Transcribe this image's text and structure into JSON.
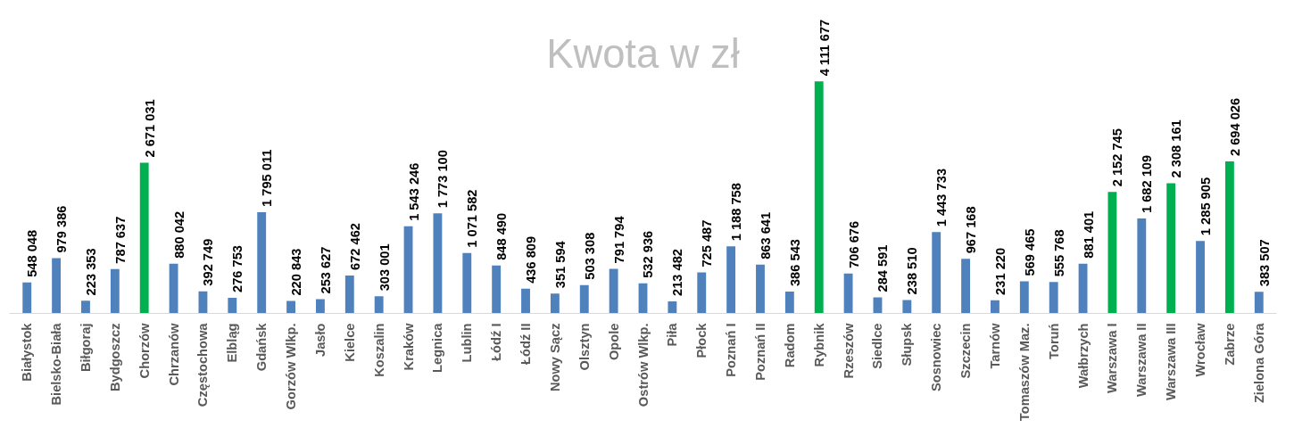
{
  "chart_data": {
    "type": "bar",
    "title": "Kwota w zł",
    "categories": [
      "Białystok",
      "Bielsko-Biała",
      "Biłgoraj",
      "Bydgoszcz",
      "Chorzów",
      "Chrzanów",
      "Częstochowa",
      "Elbląg",
      "Gdańsk",
      "Gorzów Wlkp.",
      "Jasło",
      "Kielce",
      "Koszalin",
      "Kraków",
      "Legnica",
      "Lublin",
      "Łódź I",
      "Łódź II",
      "Nowy Sącz",
      "Olsztyn",
      "Opole",
      "Ostrów Wlkp.",
      "Piła",
      "Płock",
      "Poznań I",
      "Poznań II",
      "Radom",
      "Rybnik",
      "Rzeszów",
      "Siedlce",
      "Słupsk",
      "Sosnowiec",
      "Szczecin",
      "Tarnów",
      "Tomaszów Maz.",
      "Toruń",
      "Wałbrzych",
      "Warszawa I",
      "Warszawa II",
      "Warszawa III",
      "Wrocław",
      "Zabrze",
      "Zielona Góra"
    ],
    "values": [
      548048,
      979386,
      223353,
      787637,
      2671031,
      880042,
      392749,
      276753,
      1795011,
      220843,
      253627,
      672462,
      303001,
      1543246,
      1773100,
      1071582,
      848490,
      436809,
      351594,
      503308,
      791794,
      532936,
      213482,
      725487,
      1188758,
      863641,
      386543,
      4111677,
      706676,
      284591,
      238510,
      1443733,
      967168,
      231220,
      569465,
      555768,
      881401,
      2152745,
      1682109,
      2308161,
      1285905,
      2694026,
      383507
    ],
    "value_labels": [
      "548 048",
      "979 386",
      "223 353",
      "787 637",
      "2 671 031",
      "880 042",
      "392 749",
      "276 753",
      "1 795 011",
      "220 843",
      "253 627",
      "672 462",
      "303 001",
      "1 543 246",
      "1 773 100",
      "1 071 582",
      "848 490",
      "436 809",
      "351 594",
      "503 308",
      "791 794",
      "532 936",
      "213 482",
      "725 487",
      "1 188 758",
      "863 641",
      "386 543",
      "4 111 677",
      "706 676",
      "284 591",
      "238 510",
      "1 443 733",
      "967 168",
      "231 220",
      "569 465",
      "555 768",
      "881 401",
      "2 152 745",
      "1 682 109",
      "2 308 161",
      "1 285 905",
      "2 694 026",
      "383 507"
    ],
    "colors": [
      "#4f81bd",
      "#4f81bd",
      "#4f81bd",
      "#4f81bd",
      "#00b050",
      "#4f81bd",
      "#4f81bd",
      "#4f81bd",
      "#4f81bd",
      "#4f81bd",
      "#4f81bd",
      "#4f81bd",
      "#4f81bd",
      "#4f81bd",
      "#4f81bd",
      "#4f81bd",
      "#4f81bd",
      "#4f81bd",
      "#4f81bd",
      "#4f81bd",
      "#4f81bd",
      "#4f81bd",
      "#4f81bd",
      "#4f81bd",
      "#4f81bd",
      "#4f81bd",
      "#4f81bd",
      "#00b050",
      "#4f81bd",
      "#4f81bd",
      "#4f81bd",
      "#4f81bd",
      "#4f81bd",
      "#4f81bd",
      "#4f81bd",
      "#4f81bd",
      "#4f81bd",
      "#00b050",
      "#4f81bd",
      "#00b050",
      "#4f81bd",
      "#00b050",
      "#4f81bd"
    ],
    "grid": false
  }
}
